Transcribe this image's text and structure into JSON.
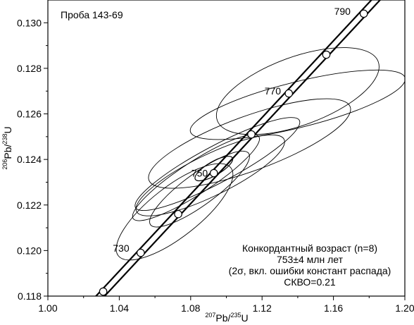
{
  "chart_data": {
    "type": "scatter",
    "title": "Проба 143-69",
    "xlabel_parts": {
      "sup1": "207",
      "base1": "Pb/",
      "sup2": "235",
      "base2": "U"
    },
    "ylabel_parts": {
      "sup1": "206",
      "base1": "Pb/",
      "sup2": "238",
      "base2": "U"
    },
    "xlim": [
      1.0,
      1.2
    ],
    "ylim": [
      0.118,
      0.131
    ],
    "x_ticks": [
      1.0,
      1.04,
      1.08,
      1.12,
      1.16,
      1.2
    ],
    "x_tick_labels": [
      "1.00",
      "1.04",
      "1.08",
      "1.12",
      "1.16",
      "1.20"
    ],
    "y_ticks": [
      0.118,
      0.12,
      0.122,
      0.124,
      0.126,
      0.128,
      0.13
    ],
    "y_tick_labels": [
      "0.118",
      "0.120",
      "0.122",
      "0.124",
      "0.126",
      "0.128",
      "0.130"
    ],
    "grid": false,
    "concordia_markers": [
      {
        "x": 1.031,
        "y": 0.1182
      },
      {
        "x": 1.052,
        "y": 0.1199
      },
      {
        "x": 1.073,
        "y": 0.1216
      },
      {
        "x": 1.093,
        "y": 0.1234
      },
      {
        "x": 1.114,
        "y": 0.1251
      },
      {
        "x": 1.135,
        "y": 0.1269
      },
      {
        "x": 1.156,
        "y": 0.1286
      },
      {
        "x": 1.177,
        "y": 0.1304
      }
    ],
    "concordia_line": {
      "x1": 1.027,
      "y1": 0.1178,
      "x2": 1.192,
      "y2": 0.1317
    },
    "age_labels": [
      {
        "text": "730",
        "x": 1.041,
        "y": 0.1201
      },
      {
        "text": "750",
        "x": 1.085,
        "y": 0.1234
      },
      {
        "text": "770",
        "x": 1.126,
        "y": 0.127
      },
      {
        "text": "790",
        "x": 1.165,
        "y": 0.1305
      }
    ],
    "error_ellipses": [
      {
        "cx": 1.095,
        "cy": 0.1238,
        "rx": 0.052,
        "ry": 0.0008,
        "angle_deg": -28
      },
      {
        "cx": 1.083,
        "cy": 0.1232,
        "rx": 0.042,
        "ry": 0.0007,
        "angle_deg": -33
      },
      {
        "cx": 1.085,
        "cy": 0.1227,
        "rx": 0.034,
        "ry": 0.0007,
        "angle_deg": -36
      },
      {
        "cx": 1.091,
        "cy": 0.1233,
        "rx": 0.046,
        "ry": 0.0009,
        "angle_deg": -26
      },
      {
        "cx": 1.071,
        "cy": 0.1217,
        "rx": 0.04,
        "ry": 0.0011,
        "angle_deg": -38
      },
      {
        "cx": 1.14,
        "cy": 0.1264,
        "rx": 0.062,
        "ry": 0.001,
        "angle_deg": -14
      },
      {
        "cx": 1.14,
        "cy": 0.127,
        "rx": 0.048,
        "ry": 0.0015,
        "angle_deg": -20
      },
      {
        "cx": 1.113,
        "cy": 0.1247,
        "rx": 0.06,
        "ry": 0.0012,
        "angle_deg": -20
      }
    ],
    "concordant_ellipse": {
      "cx": 1.093,
      "cy": 0.1236,
      "rx": 0.012,
      "ry": 0.0003,
      "angle_deg": -30
    },
    "annotation_lines": [
      "Конкордантный возраст (n=8)",
      "753±4 млн лет",
      "(2σ, вкл. ошибки констант распада)",
      "СКВО=0.21"
    ]
  }
}
